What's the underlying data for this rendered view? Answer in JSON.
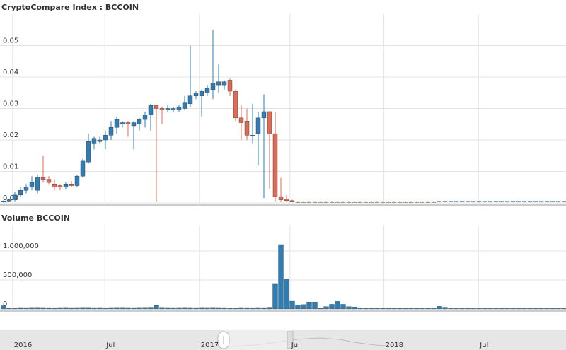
{
  "chart_data": [
    {
      "type": "candlestick",
      "title": "CryptoCompare Index : BCCOIN",
      "x": [
        0,
        1,
        2,
        3,
        4,
        5,
        6,
        7,
        8,
        9,
        10,
        11,
        12,
        13,
        14,
        15,
        16,
        17,
        18,
        19,
        20,
        21,
        22,
        23,
        24,
        25,
        26,
        27,
        28,
        29,
        30,
        31,
        32,
        33,
        34,
        35,
        36,
        37,
        38,
        39,
        40,
        41,
        42,
        43,
        44,
        45,
        46,
        47,
        48,
        49,
        50,
        51,
        52,
        53,
        54,
        55,
        56,
        57,
        58,
        59,
        60,
        61,
        62,
        63,
        64,
        65,
        66,
        67,
        68,
        69,
        70,
        71,
        72,
        73,
        74,
        75,
        76,
        77,
        78,
        79,
        80,
        81,
        82,
        83,
        84,
        85,
        86,
        87,
        88,
        89,
        90,
        91,
        92,
        93,
        94,
        95,
        96,
        97,
        98,
        99
      ],
      "open": [
        0.0003,
        0.0006,
        0.001,
        0.0025,
        0.004,
        0.005,
        0.004,
        0.008,
        0.0075,
        0.006,
        0.0055,
        0.005,
        0.006,
        0.0055,
        0.0085,
        0.013,
        0.019,
        0.0195,
        0.02,
        0.0215,
        0.024,
        0.025,
        0.0255,
        0.0245,
        0.025,
        0.0265,
        0.028,
        0.031,
        0.03,
        0.0295,
        0.0295,
        0.0295,
        0.03,
        0.0315,
        0.034,
        0.034,
        0.035,
        0.036,
        0.0375,
        0.0375,
        0.039,
        0.0355,
        0.027,
        0.026,
        0.0215,
        0.022,
        0.027,
        0.029,
        0.022,
        0.002,
        0.0012,
        0.0007,
        0.0004,
        0.0004,
        0.0004,
        0.0004,
        0.0004,
        0.0004,
        0.0004,
        0.0004,
        0.0004,
        0.0004,
        0.0004,
        0.0004,
        0.0004,
        0.0004,
        0.0004,
        0.0004,
        0.0004,
        0.0004,
        0.0004,
        0.0004,
        0.0004,
        0.0004,
        0.0004,
        0.0004,
        0.0004,
        0.0003,
        0.0003,
        0.0003,
        0.0003,
        0.0003,
        0.0003,
        0.0003,
        0.0003,
        0.0003,
        0.0003,
        0.0003,
        0.0003,
        0.0003,
        0.0003,
        0.0003,
        0.0003,
        0.0003,
        0.0003,
        0.0003,
        0.0003,
        0.0003,
        0.0003,
        0.0003
      ],
      "high": [
        0.0008,
        0.0012,
        0.0035,
        0.005,
        0.006,
        0.0085,
        0.009,
        0.015,
        0.0085,
        0.0075,
        0.006,
        0.0065,
        0.007,
        0.009,
        0.014,
        0.022,
        0.021,
        0.021,
        0.023,
        0.026,
        0.0275,
        0.026,
        0.026,
        0.026,
        0.027,
        0.029,
        0.0315,
        0.031,
        0.0305,
        0.031,
        0.0305,
        0.031,
        0.034,
        0.05,
        0.0355,
        0.036,
        0.0375,
        0.055,
        0.044,
        0.039,
        0.0395,
        0.036,
        0.031,
        0.03,
        0.0315,
        0.029,
        0.0345,
        0.029,
        0.029,
        0.008,
        0.0025,
        0.001,
        0.0006,
        0.0006,
        0.0006,
        0.0006,
        0.0006,
        0.0006,
        0.0006,
        0.0006,
        0.0006,
        0.0006,
        0.0006,
        0.0006,
        0.0006,
        0.0006,
        0.0006,
        0.0006,
        0.0006,
        0.0006,
        0.0006,
        0.0006,
        0.0006,
        0.0006,
        0.0006,
        0.0006,
        0.0006,
        0.0006,
        0.0006,
        0.0006,
        0.0006,
        0.0006,
        0.0006,
        0.0006,
        0.0006,
        0.0006,
        0.0006,
        0.0006,
        0.0006,
        0.0006,
        0.0006,
        0.0006,
        0.0006,
        0.0006,
        0.0006,
        0.0006,
        0.0006,
        0.0006,
        0.0006,
        0.0006
      ],
      "low": [
        0.0001,
        0.0003,
        0.0005,
        0.002,
        0.003,
        0.004,
        0.003,
        0.0065,
        0.006,
        0.004,
        0.004,
        0.0045,
        0.005,
        0.005,
        0.008,
        0.0125,
        0.017,
        0.019,
        0.017,
        0.02,
        0.022,
        0.024,
        0.021,
        0.017,
        0.023,
        0.024,
        0.023,
        0.0005,
        0.025,
        0.029,
        0.029,
        0.029,
        0.0295,
        0.0305,
        0.033,
        0.0275,
        0.034,
        0.033,
        0.035,
        0.036,
        0.034,
        0.026,
        0.02,
        0.02,
        0.019,
        0.012,
        0.0015,
        0.0045,
        0.0005,
        0.0005,
        0.0003,
        0.0003,
        0.0002,
        0.0002,
        0.0002,
        0.0002,
        0.0002,
        0.0002,
        0.0002,
        0.0002,
        0.0002,
        0.0002,
        0.0002,
        0.0002,
        0.0002,
        0.0002,
        0.0002,
        0.0002,
        0.0002,
        0.0002,
        0.0002,
        0.0002,
        0.0002,
        0.0002,
        0.0002,
        0.0002,
        0.0002,
        0.0002,
        0.0002,
        0.0002,
        0.0002,
        0.0002,
        0.0002,
        0.0002,
        0.0002,
        0.0002,
        0.0002,
        0.0002,
        0.0002,
        0.0002,
        0.0002,
        0.0002,
        0.0002,
        0.0002,
        0.0002,
        0.0002,
        0.0002,
        0.0002,
        0.0002,
        0.0002
      ],
      "close": [
        0.0006,
        0.001,
        0.0025,
        0.004,
        0.005,
        0.0065,
        0.008,
        0.0075,
        0.0065,
        0.005,
        0.005,
        0.006,
        0.0055,
        0.0085,
        0.0135,
        0.0195,
        0.0205,
        0.02,
        0.0215,
        0.024,
        0.0265,
        0.0255,
        0.025,
        0.0255,
        0.0265,
        0.028,
        0.031,
        0.03,
        0.0295,
        0.03,
        0.03,
        0.0305,
        0.032,
        0.034,
        0.035,
        0.0355,
        0.0365,
        0.038,
        0.0385,
        0.0385,
        0.0355,
        0.027,
        0.0255,
        0.0215,
        0.0215,
        0.027,
        0.029,
        0.022,
        0.002,
        0.001,
        0.0007,
        0.0005,
        0.0003,
        0.0003,
        0.0003,
        0.0003,
        0.0003,
        0.0003,
        0.0003,
        0.0003,
        0.0003,
        0.0003,
        0.0003,
        0.0003,
        0.0003,
        0.0003,
        0.0003,
        0.0003,
        0.0003,
        0.0003,
        0.0003,
        0.0003,
        0.0003,
        0.0003,
        0.0003,
        0.0003,
        0.0003,
        0.0005,
        0.0005,
        0.0005,
        0.0005,
        0.0005,
        0.0005,
        0.0005,
        0.0005,
        0.0005,
        0.0005,
        0.0005,
        0.0005,
        0.0005,
        0.0005,
        0.0005,
        0.0005,
        0.0005,
        0.0005,
        0.0005,
        0.0005,
        0.0005,
        0.0005,
        0.0005
      ],
      "up_color": "#2f7db3",
      "down_color": "#df6a55",
      "ylim": [
        0,
        0.06
      ],
      "yticks": [
        {
          "value": 0,
          "label": "0.00"
        },
        0.01,
        0.02,
        0.03,
        0.04,
        0.05
      ],
      "xlim": [
        -0.625,
        99.375
      ],
      "xticks": [
        {
          "value": 1.6,
          "label": "2016"
        },
        {
          "value": 17.9,
          "label": "Jul"
        },
        {
          "value": 34.6,
          "label": "2017"
        },
        {
          "value": 50.6,
          "label": "Jul"
        },
        {
          "value": 67.2,
          "label": "2018"
        },
        {
          "value": 83.9,
          "label": "Jul"
        }
      ],
      "grid": true
    },
    {
      "type": "bar",
      "title": "Volume BCCOIN",
      "x": [
        0,
        1,
        2,
        3,
        4,
        5,
        6,
        7,
        8,
        9,
        10,
        11,
        12,
        13,
        14,
        15,
        16,
        17,
        18,
        19,
        20,
        21,
        22,
        23,
        24,
        25,
        26,
        27,
        28,
        29,
        30,
        31,
        32,
        33,
        34,
        35,
        36,
        37,
        38,
        39,
        40,
        41,
        42,
        43,
        44,
        45,
        46,
        47,
        48,
        49,
        50,
        51,
        52,
        53,
        54,
        55,
        56,
        57,
        58,
        59,
        60,
        61,
        62,
        63,
        64,
        65,
        66,
        67,
        68,
        69,
        70,
        71,
        72,
        73,
        74,
        75,
        76,
        77,
        78,
        79,
        80,
        81,
        82,
        83,
        84,
        85,
        86,
        87,
        88,
        89,
        90,
        91,
        92,
        93,
        94,
        95,
        96,
        97,
        98,
        99
      ],
      "values": [
        55000,
        20000,
        22000,
        25000,
        24000,
        26000,
        28000,
        25000,
        24000,
        23000,
        25000,
        26000,
        24000,
        25000,
        27000,
        26000,
        24000,
        25000,
        23000,
        25000,
        26000,
        27000,
        25000,
        24000,
        26000,
        28000,
        30000,
        60000,
        28000,
        25000,
        24000,
        25000,
        26000,
        25000,
        24000,
        26000,
        25000,
        27000,
        25000,
        24000,
        20000,
        22000,
        25000,
        24000,
        23000,
        25000,
        24000,
        30000,
        440000,
        1110000,
        510000,
        146000,
        70000,
        75000,
        120000,
        120000,
        10000,
        40000,
        80000,
        130000,
        80000,
        40000,
        35000,
        22000,
        22000,
        22000,
        22000,
        22000,
        22000,
        22000,
        22000,
        22000,
        22000,
        22000,
        22000,
        22000,
        22000,
        45000,
        30000,
        8000,
        8000,
        8000,
        8000,
        8000,
        8000,
        8000,
        8000,
        8000,
        8000,
        8000,
        8000,
        8000,
        8000,
        8000,
        8000,
        8000,
        8000,
        8000,
        8000,
        8000
      ],
      "color": "#2f7db3",
      "ylim": [
        0,
        1500000
      ],
      "yticks": [
        0,
        {
          "value": 500000,
          "label": "500,000"
        },
        {
          "value": 1000000,
          "label": "1,000,000"
        }
      ],
      "grid": true
    }
  ]
}
